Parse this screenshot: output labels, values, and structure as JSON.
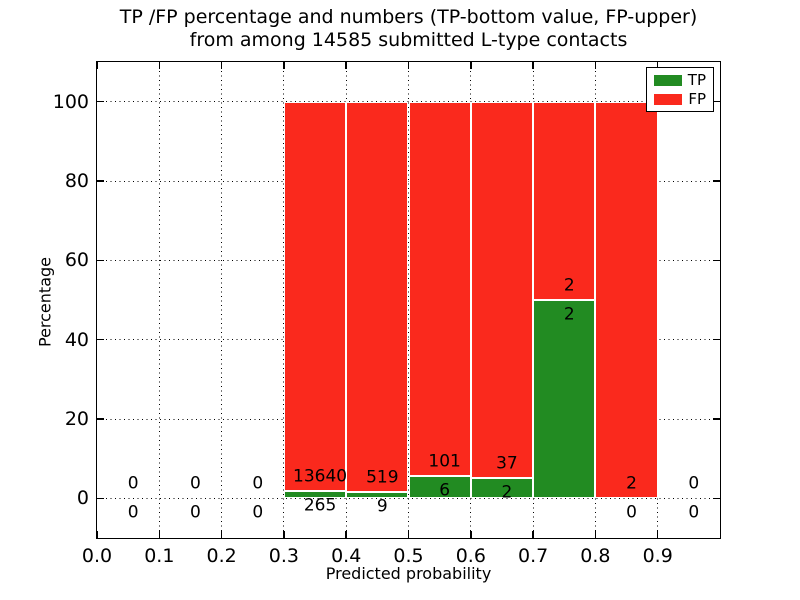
{
  "title": {
    "line1": "TP /FP percentage and numbers (TP-bottom value, FP-upper)",
    "line2": "from among 14585 submitted L-type contacts"
  },
  "axes": {
    "xlabel": "Predicted probability",
    "ylabel": "Percentage",
    "x_tick_labels": [
      "0.0",
      "0.1",
      "0.2",
      "0.3",
      "0.4",
      "0.5",
      "0.6",
      "0.7",
      "0.8",
      "0.9"
    ],
    "y_tick_labels": [
      "0",
      "20",
      "40",
      "60",
      "80",
      "100"
    ]
  },
  "chart_data": {
    "type": "bar",
    "stacked": true,
    "title": "TP /FP percentage and numbers (TP-bottom value, FP-upper) from among 14585 submitted L-type contacts",
    "xlabel": "Predicted probability",
    "ylabel": "Percentage",
    "xlim": [
      0.0,
      1.0
    ],
    "ylim": [
      -10,
      110
    ],
    "grid": "dotted",
    "x_ticks": [
      0.0,
      0.1,
      0.2,
      0.3,
      0.4,
      0.5,
      0.6,
      0.7,
      0.8,
      0.9
    ],
    "y_ticks": [
      0,
      20,
      40,
      60,
      80,
      100
    ],
    "colors": {
      "tp": "#228b22",
      "fp": "#fa291d",
      "grid": "#000000",
      "background": "#ffffff"
    },
    "legend": {
      "position": "upper right",
      "entries": [
        {
          "label": "TP",
          "color": "#228b22"
        },
        {
          "label": "FP",
          "color": "#fa291d"
        }
      ]
    },
    "bins": [
      {
        "x0": 0.0,
        "x1": 0.1,
        "tp": 0,
        "fp": 0,
        "tp_pct": 0,
        "fp_pct": 0
      },
      {
        "x0": 0.1,
        "x1": 0.2,
        "tp": 0,
        "fp": 0,
        "tp_pct": 0,
        "fp_pct": 0
      },
      {
        "x0": 0.2,
        "x1": 0.3,
        "tp": 0,
        "fp": 0,
        "tp_pct": 0,
        "fp_pct": 0
      },
      {
        "x0": 0.3,
        "x1": 0.4,
        "tp": 265,
        "fp": 13640,
        "tp_pct": 1.91,
        "fp_pct": 98.09
      },
      {
        "x0": 0.4,
        "x1": 0.5,
        "tp": 9,
        "fp": 519,
        "tp_pct": 1.7,
        "fp_pct": 98.3
      },
      {
        "x0": 0.5,
        "x1": 0.6,
        "tp": 6,
        "fp": 101,
        "tp_pct": 5.61,
        "fp_pct": 94.39
      },
      {
        "x0": 0.6,
        "x1": 0.7,
        "tp": 2,
        "fp": 37,
        "tp_pct": 5.13,
        "fp_pct": 94.87
      },
      {
        "x0": 0.7,
        "x1": 0.8,
        "tp": 2,
        "fp": 2,
        "tp_pct": 50.0,
        "fp_pct": 50.0
      },
      {
        "x0": 0.8,
        "x1": 0.9,
        "tp": 0,
        "fp": 2,
        "tp_pct": 0,
        "fp_pct": 100.0
      },
      {
        "x0": 0.9,
        "x1": 1.0,
        "tp": 0,
        "fp": 0,
        "tp_pct": 0,
        "fp_pct": 0
      }
    ]
  }
}
